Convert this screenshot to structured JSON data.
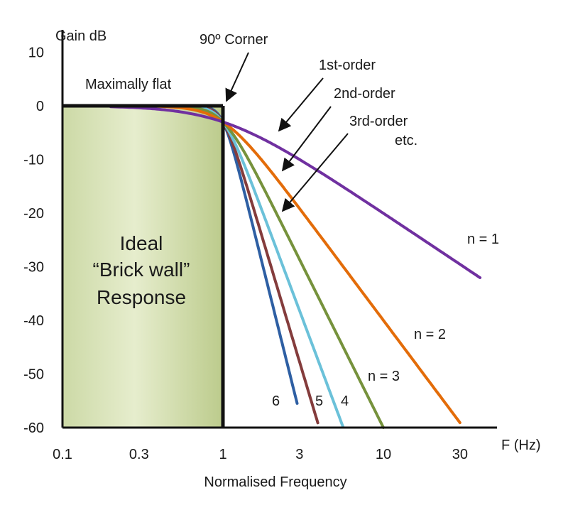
{
  "chart_data": {
    "type": "line",
    "title": "",
    "xlabel": "Normalised Frequency",
    "x_unit_label": "F (Hz)",
    "ylabel": "Gain dB",
    "x_scale": "log",
    "xlim": [
      0.1,
      40
    ],
    "ylim": [
      -60,
      10
    ],
    "x_ticks": [
      0.1,
      0.3,
      1,
      3,
      10,
      30
    ],
    "x_tick_labels": [
      "0.1",
      "0.3",
      "1",
      "3",
      "10",
      "30"
    ],
    "y_ticks": [
      10,
      0,
      -10,
      -20,
      -30,
      -40,
      -50,
      -60
    ],
    "y_tick_labels": [
      "10",
      "0",
      "-10",
      "-20",
      "-30",
      "-40",
      "-50",
      "-60"
    ],
    "grid": false,
    "ideal_region": {
      "label_lines": [
        "Ideal",
        "“Brick wall”",
        "Response"
      ],
      "x_range": [
        0.1,
        1
      ],
      "gain_db": 0
    },
    "series": [
      {
        "name": "n = 1",
        "order": 1,
        "color": "#7030a0",
        "x_end": 40,
        "gain_at_end_db": -36
      },
      {
        "name": "n = 2",
        "order": 2,
        "color": "#e36c09",
        "x_end": 30,
        "gain_at_end_db": -60
      },
      {
        "name": "n = 3",
        "order": 3,
        "color": "#76923c",
        "x_end": 10,
        "gain_at_end_db": -60
      },
      {
        "name": "4",
        "order": 4,
        "color": "#6bc1d9",
        "x_end": 5.6,
        "gain_at_end_db": -60
      },
      {
        "name": "5",
        "order": 5,
        "color": "#843c3c",
        "x_end": 3.9,
        "gain_at_end_db": -60
      },
      {
        "name": "6",
        "order": 6,
        "color": "#2e5fa3",
        "x_end": 2.9,
        "gain_at_end_db": -60
      }
    ],
    "annotations": [
      {
        "text": "Maximally flat"
      },
      {
        "text": "90º Corner"
      },
      {
        "text": "1st-order"
      },
      {
        "text": "2nd-order"
      },
      {
        "text": "3rd-order"
      },
      {
        "text": "etc."
      }
    ]
  }
}
